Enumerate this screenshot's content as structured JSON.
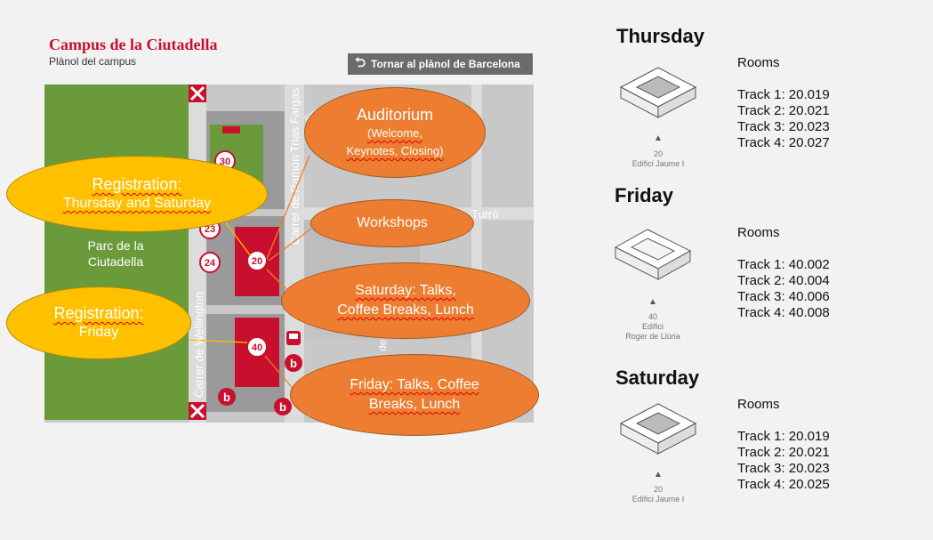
{
  "header": {
    "title": "Campus de la Ciutadella",
    "subtitle": "Plànol del campus",
    "back_button": "Tornar al plànol de Barcelona"
  },
  "map": {
    "park_label_1": "Parc de la",
    "park_label_2": "Ciutadella",
    "street_wellington": "Carrer de Wellington",
    "street_ramon": "Carrer de Ramon Trias Fargas",
    "street_turro": "Turró",
    "street_partial": "de l",
    "building_20": "20",
    "building_23": "23",
    "building_24": "24",
    "building_40": "40",
    "building_top": "30"
  },
  "callouts": {
    "auditorium": {
      "title": "Auditorium",
      "line2": "(Welcome,",
      "line3": "Keynotes, Closing)"
    },
    "reg_thu_sat": {
      "title": "Registration:",
      "line2": "Thursday and  Saturday"
    },
    "workshops": {
      "title": "Workshops"
    },
    "sat_talks": {
      "line1": "Saturday: Talks,",
      "line2": "Coffee Breaks, Lunch"
    },
    "reg_fri": {
      "title": "Registration:",
      "line2": "Friday"
    },
    "fri_talks": {
      "line1": "Friday: Talks, Coffee",
      "line2": "Breaks, Lunch"
    }
  },
  "days": [
    {
      "name": "Thursday",
      "rooms_label": "Rooms",
      "tracks": [
        "Track 1: 20.019",
        "Track 2: 20.021",
        "Track 3: 20.023",
        "Track 4: 20.027"
      ],
      "building_number": "20",
      "building_name": "Edifici Jaume I",
      "building_name2": ""
    },
    {
      "name": "Friday",
      "rooms_label": "Rooms",
      "tracks": [
        "Track 1: 40.002",
        "Track 2: 40.004",
        "Track 3: 40.006",
        "Track 4: 40.008"
      ],
      "building_number": "40",
      "building_name": "Edifici",
      "building_name2": "Roger de Llúria"
    },
    {
      "name": "Saturday",
      "rooms_label": "Rooms",
      "tracks": [
        "Track 1: 20.019",
        "Track 2: 20.021",
        "Track 3: 20.023",
        "Track 4: 20.025"
      ],
      "building_number": "20",
      "building_name": "Edifici Jaume I",
      "building_name2": ""
    }
  ],
  "colors": {
    "brand_red": "#c8102e",
    "orange": "#ed7d31",
    "yellow": "#ffc000",
    "park_green": "#6a9a3a"
  }
}
